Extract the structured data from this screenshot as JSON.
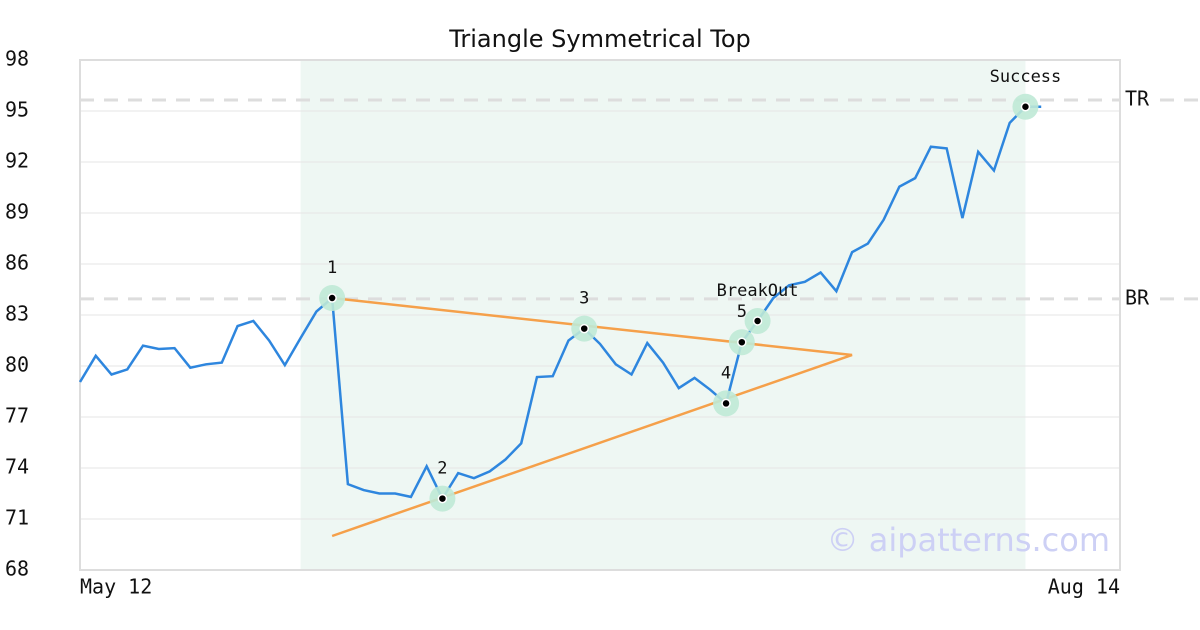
{
  "chart_data": {
    "type": "line",
    "title": "Triangle Symmetrical Top",
    "x": [
      0,
      1,
      2,
      3,
      4,
      5,
      6,
      7,
      8,
      9,
      10,
      11,
      12,
      13,
      14,
      15,
      16,
      17,
      18,
      19,
      20,
      21,
      22,
      23,
      24,
      25,
      26,
      27,
      28,
      29,
      30,
      31,
      32,
      33,
      34,
      35,
      36,
      37,
      38,
      39,
      40,
      41,
      42,
      43,
      44,
      45,
      46,
      47,
      48,
      49,
      50,
      51,
      52,
      53,
      54,
      55,
      56,
      57,
      58,
      59,
      60,
      61
    ],
    "series": [
      {
        "color": "#2e86de",
        "values": [
          79.06,
          80.6,
          79.5,
          79.8,
          81.2,
          81.0,
          81.05,
          79.9,
          80.1,
          80.2,
          82.35,
          82.65,
          81.5,
          80.05,
          81.65,
          83.2,
          84.0,
          73.05,
          72.7,
          72.5,
          72.5,
          72.3,
          74.1,
          72.2,
          73.7,
          73.4,
          73.8,
          74.5,
          75.45,
          79.35,
          79.4,
          81.5,
          82.2,
          81.3,
          80.1,
          79.5,
          81.35,
          80.2,
          78.7,
          79.3,
          78.6,
          77.8,
          81.4,
          82.65,
          84.0,
          84.75,
          84.95,
          85.5,
          84.4,
          86.7,
          87.2,
          88.6,
          90.55,
          91.05,
          92.9,
          92.8,
          88.7,
          92.6,
          91.5,
          94.3,
          95.25,
          95.25
        ]
      }
    ],
    "xlim": [
      0,
      66
    ],
    "xticks": [
      {
        "value": 0,
        "label": "May 12"
      },
      {
        "value": 66,
        "label": "Aug 14"
      }
    ],
    "ylim": [
      68,
      98
    ],
    "yticks": [
      68,
      71,
      74,
      77,
      80,
      83,
      86,
      89,
      92,
      95,
      98
    ],
    "grid": true,
    "highlight": {
      "x": [
        14,
        60
      ],
      "color": "#eef7f3"
    },
    "trendlines": [
      {
        "color": "#f5a04a",
        "x": [
          16,
          49
        ],
        "values": [
          84.0,
          80.65
        ]
      },
      {
        "color": "#f5a04a",
        "x": [
          16,
          49
        ],
        "values": [
          70.0,
          80.65
        ]
      }
    ],
    "levels": [
      {
        "label": "TR",
        "value": 95.65
      },
      {
        "label": "BR",
        "value": 83.95
      }
    ],
    "markers": [
      {
        "x": 16,
        "value": 84.0,
        "label": "1"
      },
      {
        "x": 23,
        "value": 72.2,
        "label": "2"
      },
      {
        "x": 32,
        "value": 82.2,
        "label": "3"
      },
      {
        "x": 41,
        "value": 77.8,
        "label": "4"
      },
      {
        "x": 42,
        "value": 81.4,
        "label": "5"
      },
      {
        "x": 43,
        "value": 82.65,
        "label": "BreakOut"
      },
      {
        "x": 60,
        "value": 95.25,
        "label": "Success"
      }
    ],
    "watermark": "© aipatterns.com"
  }
}
